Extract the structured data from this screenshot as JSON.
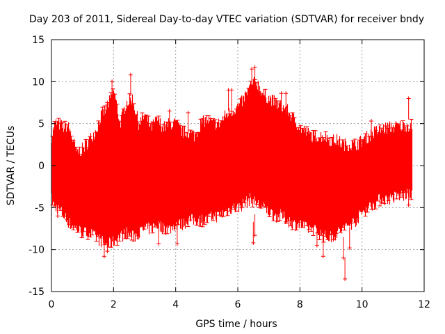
{
  "chart_data": {
    "type": "scatter",
    "title": "Day 203 of 2011, Sidereal Day-to-day VTEC variation (SDTVAR) for receiver bndy",
    "xlabel": "GPS time / hours",
    "ylabel": "SDTVAR / TECUs",
    "xlim": [
      0,
      12
    ],
    "ylim": [
      -15,
      15
    ],
    "x_ticks": [
      0,
      2,
      4,
      6,
      8,
      10,
      12
    ],
    "y_ticks": [
      -15,
      -10,
      -5,
      0,
      5,
      10,
      15
    ],
    "x_tick_labels": [
      "0",
      "2",
      "4",
      "6",
      "8",
      "10",
      "12"
    ],
    "y_tick_labels": [
      "-15",
      "-10",
      "-5",
      "0",
      "5",
      "10",
      "15"
    ],
    "grid": true,
    "series": [
      {
        "name": "SDTVAR",
        "color": "#ff0000",
        "marker": "plus-with-error-bars",
        "x_range": [
          0,
          11.6
        ],
        "envelope": {
          "x": [
            0.0,
            0.1,
            0.2,
            0.3,
            0.4,
            0.5,
            0.6,
            0.8,
            1.0,
            1.2,
            1.4,
            1.6,
            1.8,
            2.0,
            2.2,
            2.4,
            2.6,
            2.8,
            3.0,
            3.2,
            3.4,
            3.6,
            3.8,
            4.0,
            4.2,
            4.4,
            4.6,
            4.8,
            5.0,
            5.2,
            5.4,
            5.6,
            5.8,
            6.0,
            6.2,
            6.4,
            6.6,
            6.8,
            7.0,
            7.2,
            7.4,
            7.6,
            7.8,
            8.0,
            8.2,
            8.4,
            8.6,
            8.8,
            9.0,
            9.2,
            9.4,
            9.6,
            9.8,
            10.0,
            10.2,
            10.4,
            10.6,
            10.8,
            11.0,
            11.2,
            11.4,
            11.6
          ],
          "upper": [
            3.5,
            5.0,
            5.0,
            4.8,
            4.5,
            4.8,
            4.0,
            1.5,
            2.0,
            3.0,
            4.0,
            6.0,
            7.0,
            9.0,
            5.0,
            7.5,
            8.0,
            5.0,
            6.0,
            4.5,
            5.5,
            4.5,
            5.0,
            5.0,
            4.0,
            4.0,
            3.5,
            5.0,
            5.5,
            5.0,
            5.0,
            6.0,
            6.5,
            7.0,
            8.0,
            9.5,
            10.0,
            8.5,
            8.0,
            7.5,
            7.0,
            6.5,
            5.5,
            4.5,
            4.0,
            3.5,
            3.5,
            3.5,
            3.0,
            3.0,
            2.5,
            2.5,
            2.5,
            3.0,
            3.5,
            4.0,
            4.3,
            4.5,
            4.6,
            4.7,
            4.8,
            4.8
          ],
          "lower": [
            -4.0,
            -5.0,
            -5.0,
            -5.5,
            -6.0,
            -6.5,
            -7.0,
            -7.5,
            -8.0,
            -8.0,
            -8.5,
            -9.0,
            -9.5,
            -9.0,
            -8.5,
            -8.0,
            -8.5,
            -8.0,
            -7.5,
            -7.5,
            -7.0,
            -7.5,
            -7.5,
            -7.0,
            -7.0,
            -6.5,
            -6.5,
            -6.5,
            -6.5,
            -6.0,
            -6.0,
            -5.5,
            -5.0,
            -5.0,
            -4.5,
            -4.0,
            -4.5,
            -5.0,
            -5.5,
            -6.0,
            -6.0,
            -6.5,
            -7.0,
            -7.0,
            -7.5,
            -7.5,
            -8.0,
            -8.5,
            -8.5,
            -8.0,
            -7.5,
            -7.0,
            -6.5,
            -5.5,
            -5.0,
            -4.5,
            -4.0,
            -4.0,
            -3.8,
            -3.6,
            -3.5,
            -3.5
          ]
        },
        "outliers": [
          {
            "x": 1.8,
            "y": 7.5
          },
          {
            "x": 1.95,
            "y": 10.0
          },
          {
            "x": 2.55,
            "y": 10.8
          },
          {
            "x": 3.8,
            "y": 6.5
          },
          {
            "x": 4.4,
            "y": 6.3
          },
          {
            "x": 5.7,
            "y": 9.0
          },
          {
            "x": 5.8,
            "y": 9.0
          },
          {
            "x": 6.45,
            "y": 11.5
          },
          {
            "x": 6.55,
            "y": 11.7
          },
          {
            "x": 7.4,
            "y": 8.6
          },
          {
            "x": 7.55,
            "y": 8.6
          },
          {
            "x": 11.5,
            "y": 8.0
          },
          {
            "x": 10.3,
            "y": 5.3
          },
          {
            "x": 1.7,
            "y": -10.8
          },
          {
            "x": 1.8,
            "y": -10.2
          },
          {
            "x": 2.5,
            "y": -8.0
          },
          {
            "x": 3.45,
            "y": -9.3
          },
          {
            "x": 4.05,
            "y": -9.3
          },
          {
            "x": 6.5,
            "y": -9.2
          },
          {
            "x": 6.55,
            "y": -8.3
          },
          {
            "x": 7.55,
            "y": -6.7
          },
          {
            "x": 8.55,
            "y": -9.5
          },
          {
            "x": 8.75,
            "y": -10.8
          },
          {
            "x": 9.4,
            "y": -11.0
          },
          {
            "x": 9.45,
            "y": -13.5
          },
          {
            "x": 9.6,
            "y": -9.8
          },
          {
            "x": 11.5,
            "y": -4.7
          },
          {
            "x": 0.2,
            "y": -6.0
          }
        ]
      }
    ]
  }
}
